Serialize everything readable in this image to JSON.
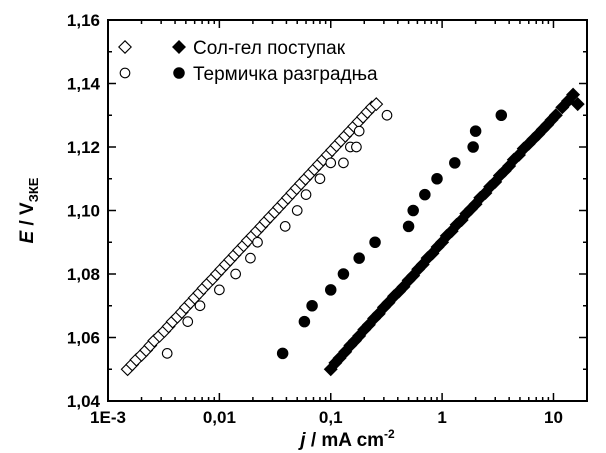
{
  "chart_data": {
    "type": "scatter",
    "title": "",
    "x_scale": "log",
    "xlim": [
      0.001,
      20
    ],
    "ylim": [
      1.04,
      1.16
    ],
    "x_ticks": [
      {
        "value": 0.001,
        "label": "1E-3"
      },
      {
        "value": 0.01,
        "label": "0,01"
      },
      {
        "value": 0.1,
        "label": "0,1"
      },
      {
        "value": 1,
        "label": "1"
      },
      {
        "value": 10,
        "label": "10"
      }
    ],
    "y_ticks": [
      {
        "value": 1.04,
        "label": "1,04"
      },
      {
        "value": 1.06,
        "label": "1,06"
      },
      {
        "value": 1.08,
        "label": "1,08"
      },
      {
        "value": 1.1,
        "label": "1,10"
      },
      {
        "value": 1.12,
        "label": "1,12"
      },
      {
        "value": 1.14,
        "label": "1,14"
      },
      {
        "value": 1.16,
        "label": "1,16"
      }
    ],
    "xlabel": {
      "italic": "j",
      "main": " / mA cm",
      "sup": "-2"
    },
    "ylabel": {
      "italic": "E",
      "main": " / V",
      "sub": "ЗКЕ"
    },
    "legend": {
      "placement": "top-left",
      "entries": [
        {
          "label": "Сол-гел поступак",
          "markers": [
            "open-diamond",
            "filled-diamond"
          ]
        },
        {
          "label": "Термичка разградња",
          "markers": [
            "open-circle",
            "filled-circle"
          ]
        }
      ]
    },
    "series": [
      {
        "marker": "open-diamond",
        "x": [
          0.0015,
          0.00165,
          0.0018,
          0.002,
          0.0022,
          0.0024,
          0.0026,
          0.0029,
          0.0032,
          0.0035,
          0.0038,
          0.0042,
          0.0046,
          0.005,
          0.0055,
          0.006,
          0.0066,
          0.0072,
          0.0079,
          0.0087,
          0.0095,
          0.0104,
          0.0114,
          0.0125,
          0.0137,
          0.015,
          0.0165,
          0.018,
          0.0198,
          0.0217,
          0.0238,
          0.026,
          0.0285,
          0.0313,
          0.0343,
          0.0376,
          0.0412,
          0.0451,
          0.0494,
          0.0541,
          0.0593,
          0.065,
          0.0712,
          0.078,
          0.0855,
          0.0937,
          0.1027,
          0.1125,
          0.1233,
          0.1351,
          0.148,
          0.1622,
          0.1778,
          0.1948,
          0.2135,
          0.234,
          0.2564
        ],
        "y": [
          1.05,
          1.0515,
          1.053,
          1.0545,
          1.056,
          1.0575,
          1.059,
          1.0605,
          1.062,
          1.0635,
          1.065,
          1.0665,
          1.068,
          1.0695,
          1.071,
          1.0725,
          1.074,
          1.0755,
          1.077,
          1.0785,
          1.08,
          1.0815,
          1.083,
          1.0845,
          1.086,
          1.0875,
          1.089,
          1.0905,
          1.092,
          1.0935,
          1.095,
          1.0965,
          1.098,
          1.0995,
          1.101,
          1.1025,
          1.104,
          1.1055,
          1.107,
          1.1085,
          1.11,
          1.1115,
          1.113,
          1.1145,
          1.116,
          1.1175,
          1.119,
          1.1205,
          1.122,
          1.1235,
          1.125,
          1.1265,
          1.128,
          1.1295,
          1.131,
          1.1325,
          1.1335
        ]
      },
      {
        "marker": "open-circle",
        "x": [
          0.0034,
          0.0052,
          0.0067,
          0.01,
          0.014,
          0.019,
          0.022,
          0.039,
          0.05,
          0.06,
          0.08,
          0.1,
          0.13,
          0.15,
          0.17,
          0.18,
          0.32
        ],
        "y": [
          1.055,
          1.065,
          1.07,
          1.075,
          1.08,
          1.085,
          1.09,
          1.095,
          1.1,
          1.105,
          1.11,
          1.115,
          1.115,
          1.12,
          1.12,
          1.125,
          1.13
        ]
      },
      {
        "marker": "filled-diamond",
        "x": [
          0.1,
          0.11,
          0.12,
          0.135,
          0.15,
          0.165,
          0.18,
          0.2,
          0.22,
          0.245,
          0.27,
          0.3,
          0.33,
          0.37,
          0.41,
          0.45,
          0.5,
          0.55,
          0.61,
          0.67,
          0.74,
          0.82,
          0.91,
          1.0,
          1.1,
          1.22,
          1.35,
          1.5,
          1.65,
          1.82,
          2.0,
          2.2,
          2.45,
          2.7,
          3.0,
          3.3,
          3.65,
          4.0,
          4.4,
          4.9,
          5.4,
          6.0,
          6.6,
          7.3,
          8.0,
          8.8,
          9.6,
          10.5,
          12.0,
          13.5,
          15.0,
          16.5
        ],
        "y": [
          1.05,
          1.052,
          1.0535,
          1.0555,
          1.0575,
          1.059,
          1.0605,
          1.0625,
          1.064,
          1.066,
          1.0675,
          1.0695,
          1.071,
          1.073,
          1.0745,
          1.076,
          1.078,
          1.0795,
          1.0815,
          1.083,
          1.085,
          1.0865,
          1.0885,
          1.09,
          1.092,
          1.0935,
          1.0955,
          1.097,
          1.099,
          1.1005,
          1.102,
          1.104,
          1.1055,
          1.1075,
          1.109,
          1.111,
          1.1125,
          1.114,
          1.116,
          1.1175,
          1.1195,
          1.121,
          1.1225,
          1.124,
          1.1255,
          1.127,
          1.1285,
          1.13,
          1.1325,
          1.1345,
          1.1365,
          1.1335
        ]
      },
      {
        "marker": "filled-circle",
        "x": [
          0.037,
          0.058,
          0.068,
          0.1,
          0.13,
          0.18,
          0.25,
          0.5,
          0.55,
          0.7,
          0.9,
          1.3,
          1.9,
          2.0,
          3.4
        ],
        "y": [
          1.055,
          1.065,
          1.07,
          1.075,
          1.08,
          1.085,
          1.09,
          1.095,
          1.1,
          1.105,
          1.11,
          1.115,
          1.12,
          1.125,
          1.13
        ]
      }
    ]
  }
}
